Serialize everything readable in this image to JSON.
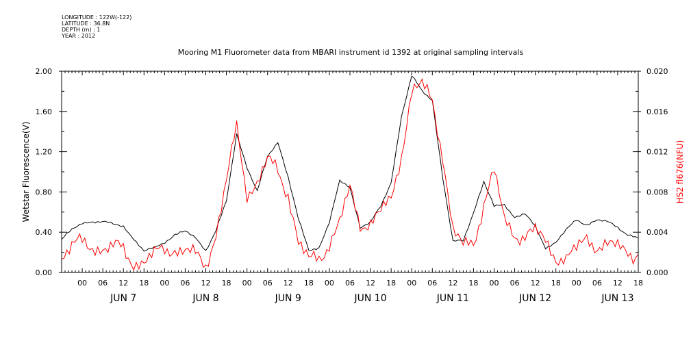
{
  "header": {
    "longitude": "LONGITUDE : 122W(-122)",
    "latitude": "LATITUDE : 36.8N",
    "depth": "DEPTH (m) : 1",
    "year": "YEAR : 2012"
  },
  "chart_data": {
    "type": "line",
    "title": "Mooring M1 Fluorometer data from MBARI instrument id 1392 at original sampling intervals",
    "ylabel": "Wetstar Fluorescence(V)",
    "y2label": "HS2 fl676(NFU)",
    "ylim": [
      0,
      2.0
    ],
    "y2lim": [
      0,
      0.02
    ],
    "yticks": [
      "0.00",
      "0.40",
      "0.80",
      "1.20",
      "1.60",
      "2.00"
    ],
    "y2ticks": [
      "0.000",
      "0.004",
      "0.008",
      "0.012",
      "0.016",
      "0.020"
    ],
    "xlim_hours": [
      -6,
      162
    ],
    "hour_ticks": [
      "00",
      "06",
      "12",
      "18",
      "00",
      "06",
      "12",
      "18",
      "00",
      "06",
      "12",
      "18",
      "00",
      "06",
      "12",
      "18",
      "00",
      "06",
      "12",
      "18",
      "00",
      "06",
      "12",
      "18",
      "00",
      "06",
      "12",
      "18"
    ],
    "day_labels": [
      "JUN  7",
      "JUN  8",
      "JUN  9",
      "JUN 10",
      "JUN 11",
      "JUN 12",
      "JUN 13"
    ],
    "series": [
      {
        "name": "Wetstar Fluorescence(V)",
        "axis": "left",
        "color": "#000000",
        "x": [
          -6,
          -3,
          0,
          3,
          6,
          9,
          12,
          15,
          18,
          21,
          24,
          27,
          30,
          33,
          36,
          39,
          42,
          45,
          48,
          51,
          54,
          57,
          60,
          63,
          66,
          69,
          72,
          75,
          78,
          81,
          84,
          87,
          90,
          93,
          96,
          99,
          102,
          105,
          108,
          111,
          114,
          117,
          120,
          123,
          126,
          129,
          132,
          135,
          138,
          141,
          144,
          147,
          150,
          153,
          156,
          159,
          162
        ],
        "values": [
          0.33,
          0.42,
          0.49,
          0.51,
          0.5,
          0.48,
          0.46,
          0.34,
          0.2,
          0.25,
          0.3,
          0.38,
          0.4,
          0.35,
          0.22,
          0.42,
          0.7,
          1.38,
          1.05,
          0.8,
          1.15,
          1.3,
          0.95,
          0.52,
          0.22,
          0.25,
          0.5,
          0.9,
          0.85,
          0.45,
          0.5,
          0.65,
          0.9,
          1.55,
          1.95,
          1.8,
          1.72,
          0.95,
          0.3,
          0.32,
          0.6,
          0.9,
          0.65,
          0.68,
          0.55,
          0.58,
          0.45,
          0.25,
          0.3,
          0.42,
          0.52,
          0.48,
          0.52,
          0.5,
          0.45,
          0.38,
          0.34
        ]
      },
      {
        "name": "HS2 fl676(NFU)",
        "axis": "right",
        "color": "#ff0000",
        "x": [
          -6,
          -3,
          0,
          3,
          6,
          9,
          12,
          15,
          18,
          21,
          24,
          27,
          30,
          33,
          36,
          39,
          42,
          45,
          48,
          51,
          54,
          57,
          60,
          63,
          66,
          69,
          72,
          75,
          78,
          81,
          84,
          87,
          90,
          93,
          96,
          99,
          102,
          105,
          108,
          111,
          114,
          117,
          120,
          123,
          126,
          129,
          132,
          135,
          138,
          141,
          144,
          147,
          150,
          153,
          156,
          159,
          162
        ],
        "values": [
          0.0018,
          0.0026,
          0.0028,
          0.0026,
          0.0025,
          0.0024,
          0.0022,
          0.001,
          0.0012,
          0.0015,
          0.0024,
          0.0024,
          0.0022,
          0.0015,
          0.0008,
          0.004,
          0.009,
          0.0142,
          0.008,
          0.009,
          0.011,
          0.01,
          0.008,
          0.003,
          0.001,
          0.0015,
          0.003,
          0.005,
          0.008,
          0.005,
          0.005,
          0.006,
          0.007,
          0.012,
          0.018,
          0.0185,
          0.017,
          0.012,
          0.004,
          0.0025,
          0.003,
          0.007,
          0.01,
          0.005,
          0.004,
          0.0036,
          0.004,
          0.003,
          0.0018,
          0.0012,
          0.0022,
          0.0035,
          0.0028,
          0.0025,
          0.0025,
          0.0022,
          0.0018
        ]
      }
    ]
  }
}
